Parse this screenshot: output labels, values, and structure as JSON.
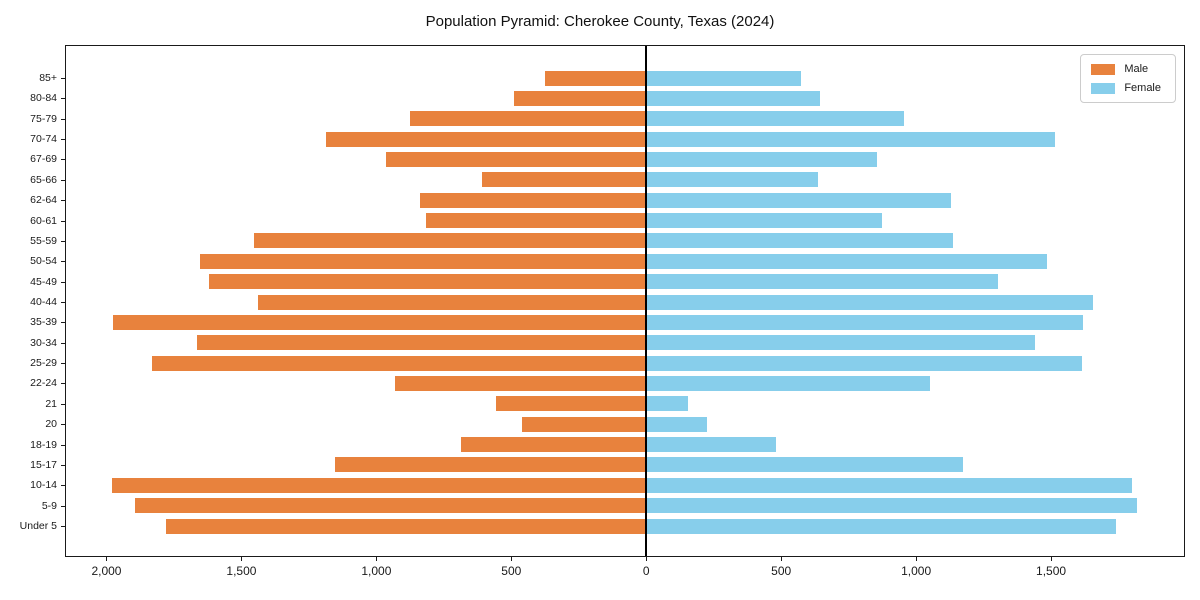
{
  "title": "Population Pyramid: Cherokee County, Texas (2024)",
  "legend": {
    "male_label": "Male",
    "female_label": "Female"
  },
  "colors": {
    "male": "#e8823d",
    "female": "#87ceeb",
    "axis": "#1a1a1a",
    "background": "#ffffff"
  },
  "chart_data": {
    "type": "bar",
    "subtype": "population-pyramid",
    "title": "Population Pyramid: Cherokee County, Texas (2024)",
    "categories_top_to_bottom": [
      "85+",
      "80-84",
      "75-79",
      "70-74",
      "67-69",
      "65-66",
      "62-64",
      "60-61",
      "55-59",
      "50-54",
      "45-49",
      "40-44",
      "35-39",
      "30-34",
      "25-29",
      "22-24",
      "21",
      "20",
      "18-19",
      "15-17",
      "10-14",
      "5-9",
      "Under 5"
    ],
    "series": [
      {
        "name": "Male",
        "side": "left",
        "color": "#e8823d",
        "values": [
          375,
          490,
          875,
          1185,
          965,
          610,
          840,
          815,
          1455,
          1655,
          1620,
          1440,
          1975,
          1665,
          1830,
          930,
          555,
          460,
          685,
          1155,
          1980,
          1895,
          1780
        ]
      },
      {
        "name": "Female",
        "side": "right",
        "color": "#87ceeb",
        "values": [
          575,
          645,
          955,
          1515,
          855,
          635,
          1130,
          875,
          1135,
          1485,
          1305,
          1655,
          1620,
          1440,
          1615,
          1050,
          155,
          225,
          480,
          1175,
          1800,
          1820,
          1740
        ]
      }
    ],
    "x_tick_values": [
      -2000,
      -1500,
      -1000,
      -500,
      0,
      500,
      1000,
      1500
    ],
    "x_tick_labels": [
      "2,000",
      "1,500",
      "1,000",
      "500",
      "0",
      "500",
      "1,000",
      "1,500"
    ],
    "xlim": [
      -2150,
      2000
    ],
    "grid": false,
    "legend_position": "upper right",
    "zero_line": true
  }
}
